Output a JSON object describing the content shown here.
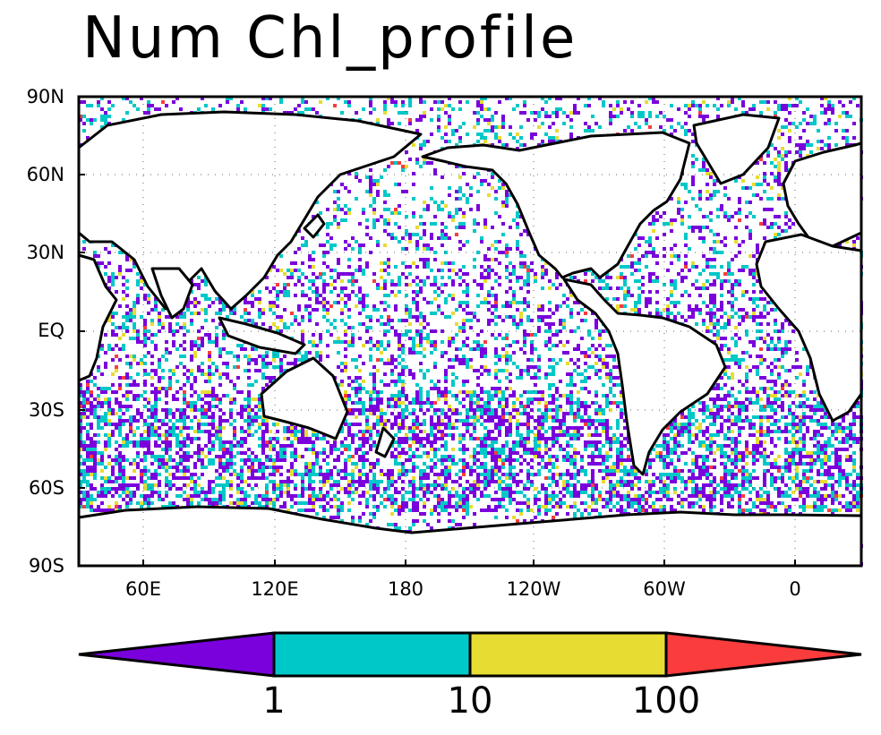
{
  "title": "Num Chl_profile",
  "map": {
    "projection": "cylindrical-equidistant",
    "lon_range": [
      20,
      380
    ],
    "lat_range": [
      -90,
      90
    ],
    "y_ticks": [
      "90N",
      "60N",
      "30N",
      "EQ",
      "30S",
      "60S",
      "90S"
    ],
    "x_ticks": [
      "60E",
      "120E",
      "180",
      "120W",
      "60W",
      "0"
    ]
  },
  "colorbar": {
    "labels": [
      "1",
      "10",
      "100"
    ],
    "colors": [
      "#7a00dc",
      "#00c8c8",
      "#e6dc32",
      "#fa3c3c"
    ]
  },
  "coast_color": "#000000"
}
